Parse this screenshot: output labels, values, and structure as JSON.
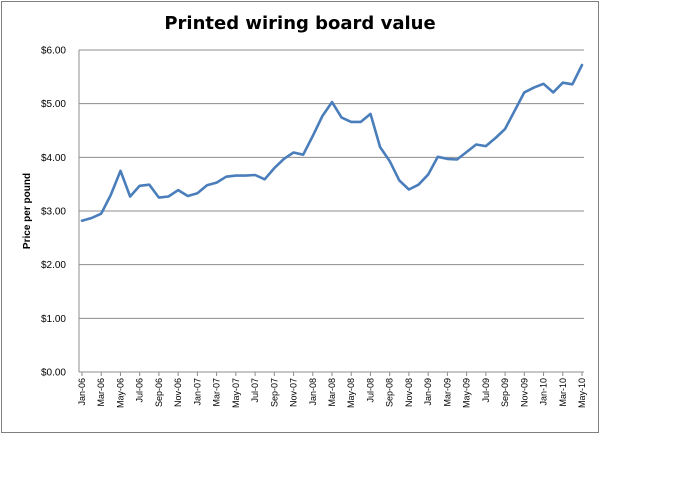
{
  "chart_data": {
    "type": "line",
    "title": "Printed wiring board value",
    "xlabel": "",
    "ylabel": "Price per pound",
    "ylim": [
      0,
      6
    ],
    "yticks": [
      "$0.00",
      "$1.00",
      "$2.00",
      "$3.00",
      "$4.00",
      "$5.00",
      "$6.00"
    ],
    "grid": true,
    "legend": "none",
    "line_color": "#4a7ebb",
    "x": [
      "Jan-06",
      "Feb-06",
      "Mar-06",
      "Apr-06",
      "May-06",
      "Jun-06",
      "Jul-06",
      "Aug-06",
      "Sep-06",
      "Oct-06",
      "Nov-06",
      "Dec-06",
      "Jan-07",
      "Feb-07",
      "Mar-07",
      "Apr-07",
      "May-07",
      "Jun-07",
      "Jul-07",
      "Aug-07",
      "Sep-07",
      "Oct-07",
      "Nov-07",
      "Dec-07",
      "Jan-08",
      "Feb-08",
      "Mar-08",
      "Apr-08",
      "May-08",
      "Jun-08",
      "Jul-08",
      "Aug-08",
      "Sep-08",
      "Oct-08",
      "Nov-08",
      "Dec-08",
      "Jan-09",
      "Feb-09",
      "Mar-09",
      "Apr-09",
      "May-09",
      "Jun-09",
      "Jul-09",
      "Aug-09",
      "Sep-09",
      "Oct-09",
      "Nov-09",
      "Dec-09",
      "Jan-10",
      "Feb-10",
      "Mar-10",
      "Apr-10",
      "May-10"
    ],
    "xtick_labels": [
      "Jan-06",
      "Mar-06",
      "May-06",
      "Jul-06",
      "Sep-06",
      "Nov-06",
      "Jan-07",
      "Mar-07",
      "May-07",
      "Jul-07",
      "Sep-07",
      "Nov-07",
      "Jan-08",
      "Mar-08",
      "May-08",
      "Jul-08",
      "Sep-08",
      "Nov-08",
      "Jan-09",
      "Mar-09",
      "May-09",
      "Jul-09",
      "Sep-09",
      "Nov-09",
      "Jan-10",
      "Mar-10",
      "May-10"
    ],
    "series": [
      {
        "values": [
          2.82,
          2.87,
          2.95,
          3.3,
          3.75,
          3.27,
          3.47,
          3.49,
          3.25,
          3.27,
          3.39,
          3.28,
          3.33,
          3.48,
          3.53,
          3.64,
          3.66,
          3.66,
          3.67,
          3.59,
          3.8,
          3.97,
          4.09,
          4.05,
          4.4,
          4.77,
          5.03,
          4.74,
          4.66,
          4.66,
          4.81,
          4.19,
          3.93,
          3.57,
          3.4,
          3.49,
          3.68,
          4.01,
          3.97,
          3.96,
          4.1,
          4.24,
          4.21,
          4.36,
          4.53,
          4.87,
          5.21,
          5.3,
          5.37,
          5.21,
          5.39,
          5.36,
          5.72
        ]
      }
    ]
  }
}
